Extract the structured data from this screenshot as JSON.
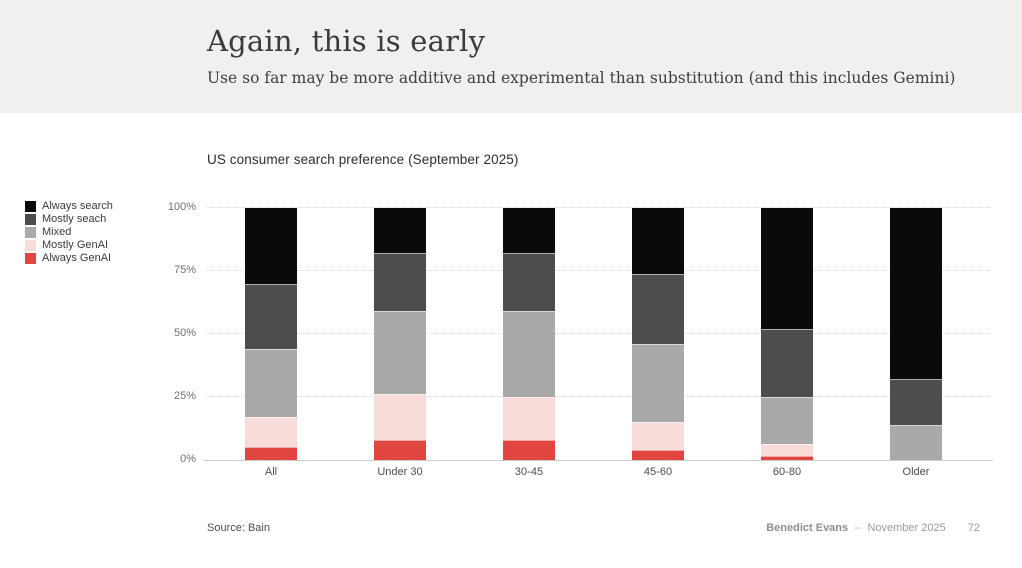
{
  "header": {
    "title": "Again, this is early",
    "subtitle": "Use so far may be more additive and experimental than substitution (and this includes Gemini)"
  },
  "chart_data": {
    "type": "bar",
    "stacked": true,
    "title": "US consumer search preference (September 2025)",
    "categories": [
      "All",
      "Under 30",
      "30-45",
      "45-60",
      "60-80",
      "Older"
    ],
    "series": [
      {
        "name": "Always search",
        "color": "#0a0a0a",
        "values": [
          30,
          18,
          18,
          26,
          48,
          68
        ]
      },
      {
        "name": "Mostly seach",
        "color": "#4d4d4d",
        "values": [
          26,
          23,
          23,
          28,
          27,
          18
        ]
      },
      {
        "name": "Mixed",
        "color": "#a9a9a9",
        "values": [
          27,
          33,
          34,
          31,
          18.5,
          14
        ]
      },
      {
        "name": "Mostly GenAI",
        "color": "#f8dcda",
        "values": [
          12,
          18,
          17,
          11,
          5,
          0
        ]
      },
      {
        "name": "Always GenAI",
        "color": "#e0463f",
        "values": [
          5,
          8,
          8,
          4,
          1.5,
          0
        ]
      }
    ],
    "yticks": [
      "0%",
      "25%",
      "50%",
      "75%",
      "100%"
    ],
    "ylim": [
      0,
      100
    ],
    "xlabel": "",
    "ylabel": "",
    "grid": "horizontal-dotted",
    "legend_position": "left"
  },
  "footer": {
    "source": "Source: Bain",
    "author": "Benedict Evans",
    "separator": "--",
    "date": "November 2025",
    "page": "72"
  }
}
